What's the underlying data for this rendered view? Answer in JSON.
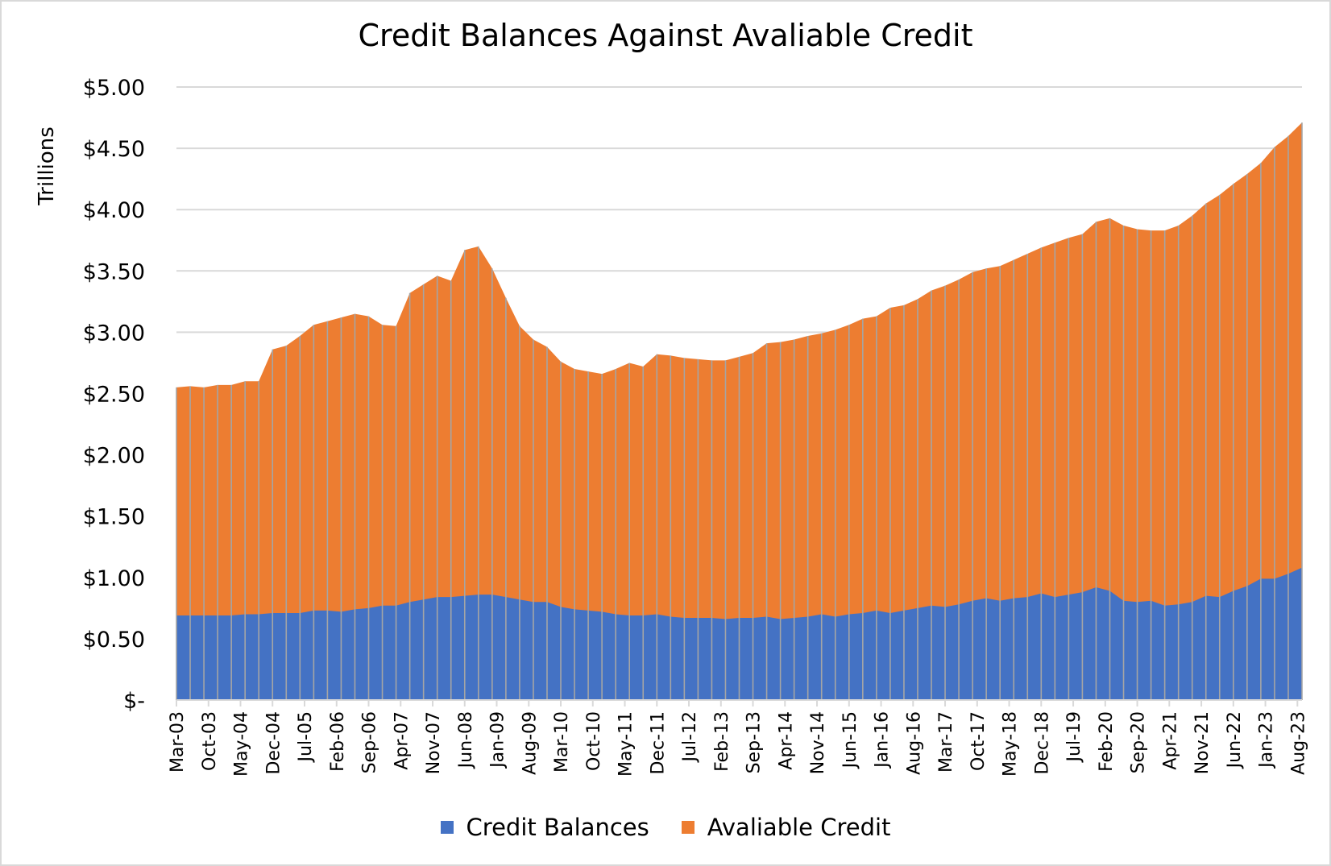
{
  "chart_data": {
    "type": "area",
    "stacked": true,
    "title": "Credit Balances Against Avaliable Credit",
    "xlabel": "",
    "ylabel": "Trillions",
    "ylim": [
      0,
      5
    ],
    "y_ticks": [
      "$-",
      "$0.50",
      "$1.00",
      "$1.50",
      "$2.00",
      "$2.50",
      "$3.00",
      "$3.50",
      "$4.00",
      "$4.50",
      "$5.00"
    ],
    "x_tick_labels": [
      "Mar-03",
      "Oct-03",
      "May-04",
      "Dec-04",
      "Jul-05",
      "Feb-06",
      "Sep-06",
      "Apr-07",
      "Nov-07",
      "Jun-08",
      "Jan-09",
      "Aug-09",
      "Mar-10",
      "Oct-10",
      "May-11",
      "Dec-11",
      "Jul-12",
      "Feb-13",
      "Sep-13",
      "Apr-14",
      "Nov-14",
      "Jun-15",
      "Jan-16",
      "Aug-16",
      "Mar-17",
      "Oct-17",
      "May-18",
      "Dec-18",
      "Jul-19",
      "Feb-20",
      "Sep-20",
      "Apr-21",
      "Nov-21",
      "Jun-22",
      "Jan-23",
      "Aug-23"
    ],
    "x_start": "Mar-03",
    "x_frequency": "quarterly",
    "grid": {
      "horizontal": true,
      "vertical": false
    },
    "legend_position": "bottom",
    "series": [
      {
        "name": "Credit Balances",
        "color": "#4472C4",
        "values": [
          0.69,
          0.69,
          0.69,
          0.69,
          0.69,
          0.7,
          0.7,
          0.71,
          0.71,
          0.71,
          0.73,
          0.73,
          0.72,
          0.74,
          0.75,
          0.77,
          0.77,
          0.8,
          0.82,
          0.84,
          0.84,
          0.85,
          0.86,
          0.86,
          0.84,
          0.82,
          0.8,
          0.8,
          0.76,
          0.74,
          0.73,
          0.72,
          0.7,
          0.69,
          0.69,
          0.7,
          0.68,
          0.67,
          0.67,
          0.67,
          0.66,
          0.67,
          0.67,
          0.68,
          0.66,
          0.67,
          0.68,
          0.7,
          0.68,
          0.7,
          0.71,
          0.73,
          0.71,
          0.73,
          0.75,
          0.77,
          0.76,
          0.78,
          0.81,
          0.83,
          0.81,
          0.83,
          0.84,
          0.87,
          0.84,
          0.86,
          0.88,
          0.92,
          0.89,
          0.81,
          0.8,
          0.81,
          0.77,
          0.78,
          0.8,
          0.85,
          0.84,
          0.89,
          0.93,
          0.99,
          0.99,
          1.03,
          1.08
        ]
      },
      {
        "name": "Avaliable Credit",
        "color": "#ED7D31",
        "values": [
          1.86,
          1.87,
          1.86,
          1.88,
          1.88,
          1.9,
          1.9,
          2.15,
          2.18,
          2.26,
          2.33,
          2.36,
          2.4,
          2.41,
          2.38,
          2.29,
          2.28,
          2.52,
          2.57,
          2.62,
          2.58,
          2.82,
          2.84,
          2.66,
          2.44,
          2.23,
          2.14,
          2.08,
          2.0,
          1.96,
          1.95,
          1.94,
          2.0,
          2.06,
          2.03,
          2.12,
          2.13,
          2.12,
          2.11,
          2.1,
          2.11,
          2.13,
          2.16,
          2.23,
          2.26,
          2.27,
          2.29,
          2.29,
          2.34,
          2.36,
          2.4,
          2.4,
          2.49,
          2.49,
          2.52,
          2.57,
          2.62,
          2.65,
          2.68,
          2.69,
          2.73,
          2.76,
          2.8,
          2.82,
          2.89,
          2.91,
          2.92,
          2.98,
          3.04,
          3.06,
          3.04,
          3.02,
          3.06,
          3.09,
          3.15,
          3.2,
          3.28,
          3.32,
          3.36,
          3.39,
          3.52,
          3.57,
          3.63
        ]
      }
    ]
  },
  "legend": {
    "items": [
      {
        "label": "Credit Balances",
        "color": "#4472C4"
      },
      {
        "label": "Avaliable Credit",
        "color": "#ED7D31"
      }
    ]
  }
}
